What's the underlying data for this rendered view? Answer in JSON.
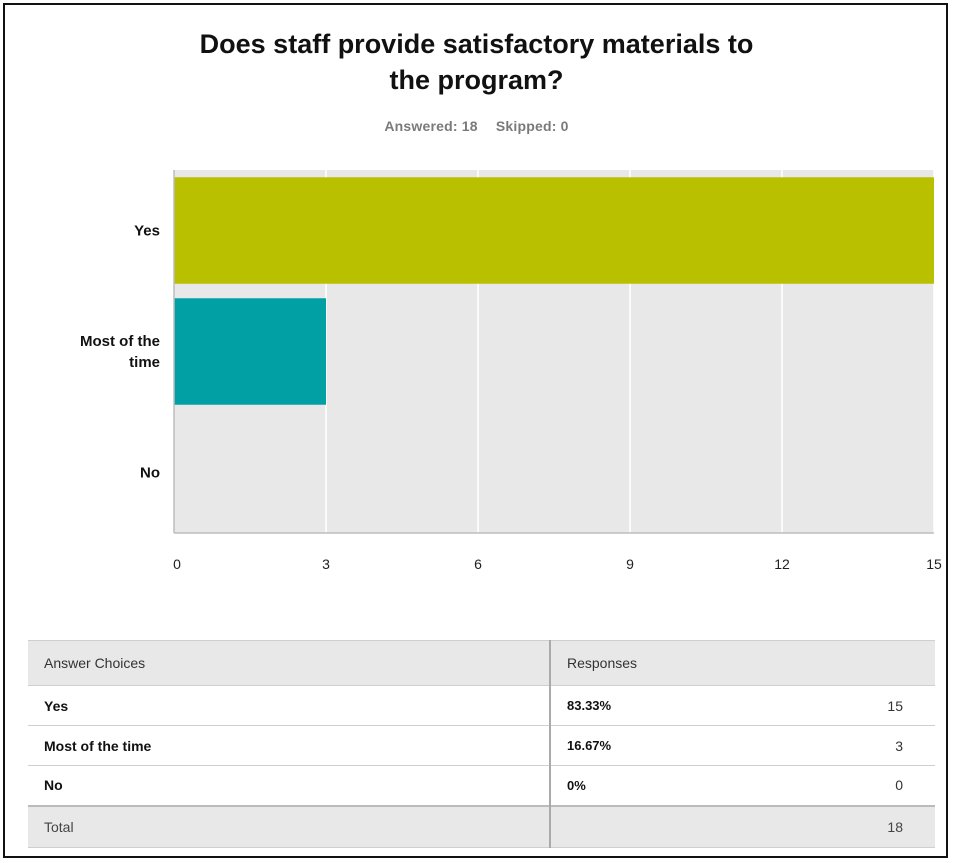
{
  "question": {
    "title_line1": "Does staff provide satisfactory materials to",
    "title_line2": "the program?",
    "answered": "Answered: 18",
    "skipped": "Skipped: 0"
  },
  "chart_data": {
    "type": "bar",
    "orientation": "horizontal",
    "categories": [
      "Yes",
      "Most of the time",
      "No"
    ],
    "category_label_lines": [
      [
        "Yes"
      ],
      [
        "Most of the",
        "time"
      ],
      [
        "No"
      ]
    ],
    "values": [
      15,
      3,
      0
    ],
    "xlim": [
      0,
      15
    ],
    "xticks": [
      0,
      3,
      6,
      9,
      12,
      15
    ],
    "colors": [
      "#b9c000",
      "#00a0a4",
      "#cccccc"
    ],
    "grid": true,
    "background": "#e8e8e8"
  },
  "table": {
    "headers": [
      "Answer Choices",
      "Responses",
      ""
    ],
    "rows": [
      {
        "choice": "Yes",
        "percent": "83.33%",
        "count": "15"
      },
      {
        "choice": "Most of the time",
        "percent": "16.67%",
        "count": "3"
      },
      {
        "choice": "No",
        "percent": "0%",
        "count": "0"
      }
    ],
    "total_label": "Total",
    "total_value": "18"
  }
}
